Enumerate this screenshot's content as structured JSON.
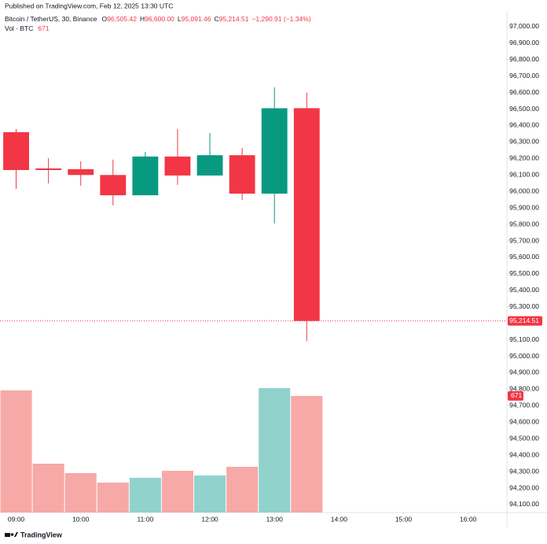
{
  "chart_data": {
    "type": "candlestick",
    "published": "Published on TradingView.com, Feb 12, 2025 13:30 UTC",
    "title": "Bitcoin / TetherUS, 30, Binance",
    "header": [
      {
        "key": "O",
        "value": "96,505.42"
      },
      {
        "key": "H",
        "value": "96,600.00"
      },
      {
        "key": "L",
        "value": "95,091.46"
      },
      {
        "key": "C",
        "value": "95,214.51"
      }
    ],
    "change": "−1,290.91 (−1.34%)",
    "volume_title": "Vol · BTC",
    "branding": "TradingView",
    "x": [
      9,
      9.5,
      10,
      10.5,
      11,
      11.5,
      12,
      12.5,
      13,
      13.5
    ],
    "open": [
      96360,
      96140,
      96135,
      96100,
      95977,
      96212,
      96097,
      96220,
      95987,
      96505.42
    ],
    "high": [
      96379,
      96202,
      96183,
      96193,
      96240,
      96379,
      96355,
      96264,
      96632,
      96600.0
    ],
    "low": [
      96016,
      96049,
      96035,
      95915,
      95977,
      96040,
      96097,
      95949,
      95806,
      95091.46
    ],
    "close": [
      96130,
      96130,
      96100,
      95977,
      96212,
      96097,
      96220,
      95987,
      96505,
      95214.51
    ],
    "volume": [
      703,
      281,
      227,
      172,
      200,
      240,
      213,
      263,
      716,
      671
    ],
    "up_color": "#089981",
    "down_color": "#f23645",
    "volume_up_color": "#92d2cc",
    "volume_down_color": "#f7a9a7",
    "xlim": [
      8.75,
      16.6
    ],
    "xticks": [
      {
        "value": 9,
        "label": "09:00"
      },
      {
        "value": 10,
        "label": "10:00"
      },
      {
        "value": 11,
        "label": "11:00"
      },
      {
        "value": 12,
        "label": "12:00"
      },
      {
        "value": 13,
        "label": "13:00"
      },
      {
        "value": 14,
        "label": "14:00"
      },
      {
        "value": 15,
        "label": "15:00"
      },
      {
        "value": 16,
        "label": "16:00"
      }
    ],
    "ylim": [
      94052,
      97095
    ],
    "yticks": [
      {
        "value": 97000,
        "label": "97,000.00"
      },
      {
        "value": 96900,
        "label": "96,900.00"
      },
      {
        "value": 96800,
        "label": "96,800.00"
      },
      {
        "value": 96700,
        "label": "96,700.00"
      },
      {
        "value": 96600,
        "label": "96,600.00"
      },
      {
        "value": 96500,
        "label": "96,500.00"
      },
      {
        "value": 96400,
        "label": "96,400.00"
      },
      {
        "value": 96300,
        "label": "96,300.00"
      },
      {
        "value": 96200,
        "label": "96,200.00"
      },
      {
        "value": 96100,
        "label": "96,100.00"
      },
      {
        "value": 96000,
        "label": "96,000.00"
      },
      {
        "value": 95900,
        "label": "95,900.00"
      },
      {
        "value": 95800,
        "label": "95,800.00"
      },
      {
        "value": 95700,
        "label": "95,700.00"
      },
      {
        "value": 95600,
        "label": "95,600.00"
      },
      {
        "value": 95500,
        "label": "95,500.00"
      },
      {
        "value": 95400,
        "label": "95,400.00"
      },
      {
        "value": 95300,
        "label": "95,300.00"
      },
      {
        "value": 95100,
        "label": "95,100.00"
      },
      {
        "value": 95000,
        "label": "95,000.00"
      },
      {
        "value": 94900,
        "label": "94,900.00"
      },
      {
        "value": 94800,
        "label": "94,800.00"
      },
      {
        "value": 94700,
        "label": "94,700.00"
      },
      {
        "value": 94600,
        "label": "94,600.00"
      },
      {
        "value": 94500,
        "label": "94,500.00"
      },
      {
        "value": 94400,
        "label": "94,400.00"
      },
      {
        "value": 94300,
        "label": "94,300.00"
      },
      {
        "value": 94200,
        "label": "94,200.00"
      },
      {
        "value": 94100,
        "label": "94,100.00"
      }
    ],
    "grid": false
  }
}
